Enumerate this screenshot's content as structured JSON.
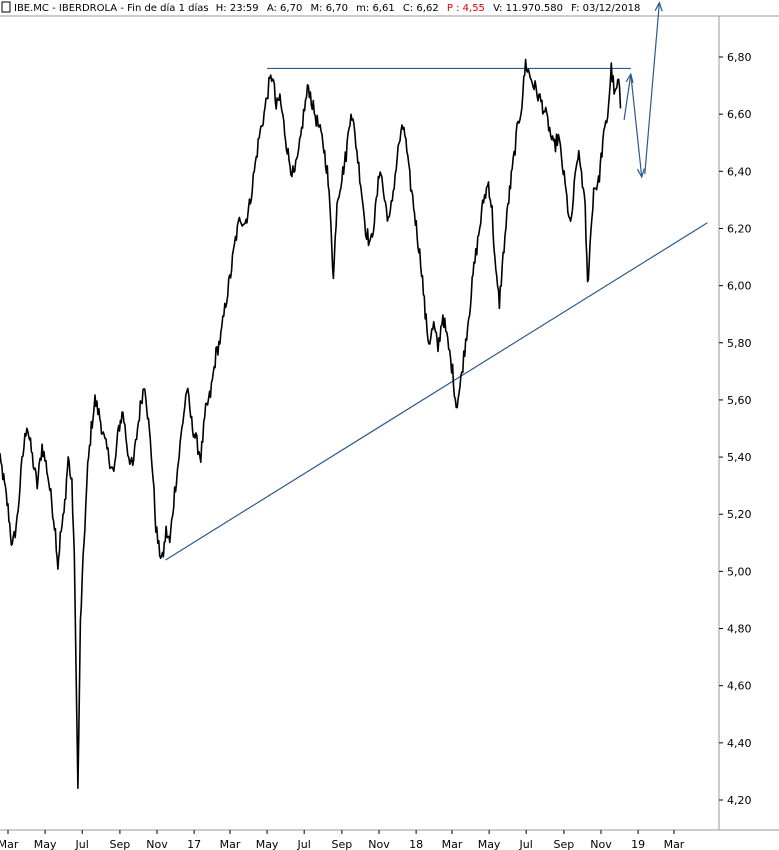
{
  "header": {
    "symbol": "IBE.MC",
    "name": "IBERDROLA",
    "period": "Fin de día 1 días",
    "h": "H: 23:59",
    "a": "A: 6,70",
    "m_max": "M: 6,70",
    "m_min": "m: 6,61",
    "c": "C: 6,62",
    "p": "P : 4,55",
    "v": "V: 11.970.580",
    "f": "F: 03/12/2018"
  },
  "colors": {
    "price": "#000000",
    "annotation": "#2b5a8c",
    "pct_change": "#e00000",
    "grid": "#9a9a9a"
  },
  "chart_data": {
    "type": "line",
    "title": "",
    "xlabel": "",
    "ylabel": "",
    "grid": false,
    "ylim": [
      4.2,
      6.9
    ],
    "y_ticks": [
      "4,20",
      "4,40",
      "4,60",
      "4,80",
      "5,00",
      "5,20",
      "5,40",
      "5,60",
      "5,80",
      "6,00",
      "6,20",
      "6,40",
      "6,60",
      "6,80"
    ],
    "y_tick_values": [
      4.2,
      4.4,
      4.6,
      4.8,
      5.0,
      5.2,
      5.4,
      5.6,
      5.8,
      6.0,
      6.2,
      6.4,
      6.6,
      6.8
    ],
    "x_ticks": [
      "Mar",
      "May",
      "Jul",
      "Sep",
      "Nov",
      "17",
      "Mar",
      "May",
      "Jul",
      "Sep",
      "Nov",
      "18",
      "Mar",
      "May",
      "Jul",
      "Sep",
      "Nov",
      "19",
      "Mar"
    ],
    "x_tick_dates": [
      "2016-03",
      "2016-05",
      "2016-07",
      "2016-09",
      "2016-11",
      "2017-01",
      "2017-03",
      "2017-05",
      "2017-07",
      "2017-09",
      "2017-11",
      "2018-01",
      "2018-03",
      "2018-05",
      "2018-07",
      "2018-09",
      "2018-11",
      "2019-01",
      "2019-03"
    ],
    "series": [
      {
        "values": [
          [
            "2016-02-12",
            5.42
          ],
          [
            "2016-02-20",
            5.36
          ],
          [
            "2016-03-01",
            5.22
          ],
          [
            "2016-03-08",
            5.08
          ],
          [
            "2016-03-16",
            5.18
          ],
          [
            "2016-03-24",
            5.38
          ],
          [
            "2016-04-01",
            5.52
          ],
          [
            "2016-04-10",
            5.4
          ],
          [
            "2016-04-18",
            5.3
          ],
          [
            "2016-04-26",
            5.44
          ],
          [
            "2016-05-04",
            5.36
          ],
          [
            "2016-05-12",
            5.24
          ],
          [
            "2016-05-18",
            5.14
          ],
          [
            "2016-05-22",
            5.02
          ],
          [
            "2016-05-26",
            5.12
          ],
          [
            "2016-06-01",
            5.2
          ],
          [
            "2016-06-08",
            5.4
          ],
          [
            "2016-06-14",
            5.3
          ],
          [
            "2016-06-18",
            5.06
          ],
          [
            "2016-06-24",
            4.24
          ],
          [
            "2016-06-28",
            4.82
          ],
          [
            "2016-07-04",
            5.1
          ],
          [
            "2016-07-10",
            5.36
          ],
          [
            "2016-07-16",
            5.5
          ],
          [
            "2016-07-22",
            5.6
          ],
          [
            "2016-07-30",
            5.54
          ],
          [
            "2016-08-06",
            5.46
          ],
          [
            "2016-08-14",
            5.4
          ],
          [
            "2016-08-22",
            5.34
          ],
          [
            "2016-08-30",
            5.5
          ],
          [
            "2016-09-06",
            5.56
          ],
          [
            "2016-09-14",
            5.42
          ],
          [
            "2016-09-22",
            5.36
          ],
          [
            "2016-09-30",
            5.5
          ],
          [
            "2016-10-06",
            5.6
          ],
          [
            "2016-10-12",
            5.66
          ],
          [
            "2016-10-18",
            5.52
          ],
          [
            "2016-10-24",
            5.38
          ],
          [
            "2016-10-30",
            5.16
          ],
          [
            "2016-11-04",
            5.08
          ],
          [
            "2016-11-10",
            5.04
          ],
          [
            "2016-11-16",
            5.14
          ],
          [
            "2016-11-22",
            5.1
          ],
          [
            "2016-11-30",
            5.28
          ],
          [
            "2016-12-06",
            5.38
          ],
          [
            "2016-12-12",
            5.5
          ],
          [
            "2016-12-20",
            5.64
          ],
          [
            "2016-12-28",
            5.52
          ],
          [
            "2017-01-04",
            5.46
          ],
          [
            "2017-01-12",
            5.4
          ],
          [
            "2017-01-20",
            5.56
          ],
          [
            "2017-01-28",
            5.62
          ],
          [
            "2017-02-06",
            5.76
          ],
          [
            "2017-02-14",
            5.82
          ],
          [
            "2017-02-22",
            5.94
          ],
          [
            "2017-03-02",
            6.04
          ],
          [
            "2017-03-10",
            6.16
          ],
          [
            "2017-03-18",
            6.24
          ],
          [
            "2017-03-26",
            6.22
          ],
          [
            "2017-04-02",
            6.28
          ],
          [
            "2017-04-10",
            6.4
          ],
          [
            "2017-04-18",
            6.52
          ],
          [
            "2017-04-26",
            6.6
          ],
          [
            "2017-05-04",
            6.7
          ],
          [
            "2017-05-10",
            6.74
          ],
          [
            "2017-05-16",
            6.62
          ],
          [
            "2017-05-22",
            6.66
          ],
          [
            "2017-05-30",
            6.54
          ],
          [
            "2017-06-06",
            6.44
          ],
          [
            "2017-06-14",
            6.38
          ],
          [
            "2017-06-22",
            6.46
          ],
          [
            "2017-06-30",
            6.6
          ],
          [
            "2017-07-08",
            6.7
          ],
          [
            "2017-07-16",
            6.62
          ],
          [
            "2017-07-24",
            6.56
          ],
          [
            "2017-08-01",
            6.5
          ],
          [
            "2017-08-08",
            6.4
          ],
          [
            "2017-08-14",
            6.22
          ],
          [
            "2017-08-18",
            6.02
          ],
          [
            "2017-08-24",
            6.3
          ],
          [
            "2017-09-01",
            6.38
          ],
          [
            "2017-09-08",
            6.46
          ],
          [
            "2017-09-16",
            6.62
          ],
          [
            "2017-09-24",
            6.5
          ],
          [
            "2017-10-02",
            6.36
          ],
          [
            "2017-10-10",
            6.2
          ],
          [
            "2017-10-18",
            6.14
          ],
          [
            "2017-10-26",
            6.26
          ],
          [
            "2017-11-03",
            6.42
          ],
          [
            "2017-11-10",
            6.3
          ],
          [
            "2017-11-18",
            6.22
          ],
          [
            "2017-11-26",
            6.36
          ],
          [
            "2017-12-04",
            6.5
          ],
          [
            "2017-12-12",
            6.56
          ],
          [
            "2017-12-20",
            6.4
          ],
          [
            "2017-12-28",
            6.28
          ],
          [
            "2018-01-04",
            6.16
          ],
          [
            "2018-01-10",
            6.06
          ],
          [
            "2018-01-16",
            5.9
          ],
          [
            "2018-01-22",
            5.8
          ],
          [
            "2018-01-30",
            5.86
          ],
          [
            "2018-02-06",
            5.78
          ],
          [
            "2018-02-14",
            5.9
          ],
          [
            "2018-02-22",
            5.8
          ],
          [
            "2018-03-02",
            5.7
          ],
          [
            "2018-03-08",
            5.58
          ],
          [
            "2018-03-14",
            5.64
          ],
          [
            "2018-03-22",
            5.78
          ],
          [
            "2018-03-30",
            5.92
          ],
          [
            "2018-04-06",
            6.06
          ],
          [
            "2018-04-14",
            6.18
          ],
          [
            "2018-04-22",
            6.3
          ],
          [
            "2018-04-30",
            6.36
          ],
          [
            "2018-05-06",
            6.26
          ],
          [
            "2018-05-12",
            6.04
          ],
          [
            "2018-05-18",
            5.94
          ],
          [
            "2018-05-24",
            6.1
          ],
          [
            "2018-06-01",
            6.28
          ],
          [
            "2018-06-08",
            6.4
          ],
          [
            "2018-06-16",
            6.54
          ],
          [
            "2018-06-24",
            6.64
          ],
          [
            "2018-06-30",
            6.78
          ],
          [
            "2018-07-06",
            6.74
          ],
          [
            "2018-07-14",
            6.7
          ],
          [
            "2018-07-22",
            6.66
          ],
          [
            "2018-07-30",
            6.62
          ],
          [
            "2018-08-07",
            6.56
          ],
          [
            "2018-08-15",
            6.48
          ],
          [
            "2018-08-23",
            6.52
          ],
          [
            "2018-08-31",
            6.4
          ],
          [
            "2018-09-06",
            6.3
          ],
          [
            "2018-09-12",
            6.2
          ],
          [
            "2018-09-18",
            6.34
          ],
          [
            "2018-09-24",
            6.46
          ],
          [
            "2018-09-30",
            6.4
          ],
          [
            "2018-10-06",
            6.26
          ],
          [
            "2018-10-10",
            6.0
          ],
          [
            "2018-10-14",
            6.14
          ],
          [
            "2018-10-20",
            6.34
          ],
          [
            "2018-10-28",
            6.36
          ],
          [
            "2018-11-04",
            6.5
          ],
          [
            "2018-11-12",
            6.6
          ],
          [
            "2018-11-18",
            6.76
          ],
          [
            "2018-11-24",
            6.66
          ],
          [
            "2018-11-30",
            6.72
          ],
          [
            "2018-12-03",
            6.62
          ]
        ]
      }
    ],
    "annotations": {
      "resistance": {
        "from": [
          "2017-05-01",
          6.76
        ],
        "to": [
          "2018-12-20",
          6.76
        ]
      },
      "support": {
        "from": [
          "2016-11-15",
          5.04
        ],
        "to": [
          "2019-04-25",
          6.22
        ]
      },
      "projection": [
        [
          "2018-12-09",
          6.58
        ],
        [
          "2018-12-20",
          6.74
        ],
        [
          "2019-01-07",
          6.38
        ],
        [
          "2019-01-12",
          6.39
        ],
        [
          "2019-02-05",
          6.99
        ]
      ]
    }
  }
}
